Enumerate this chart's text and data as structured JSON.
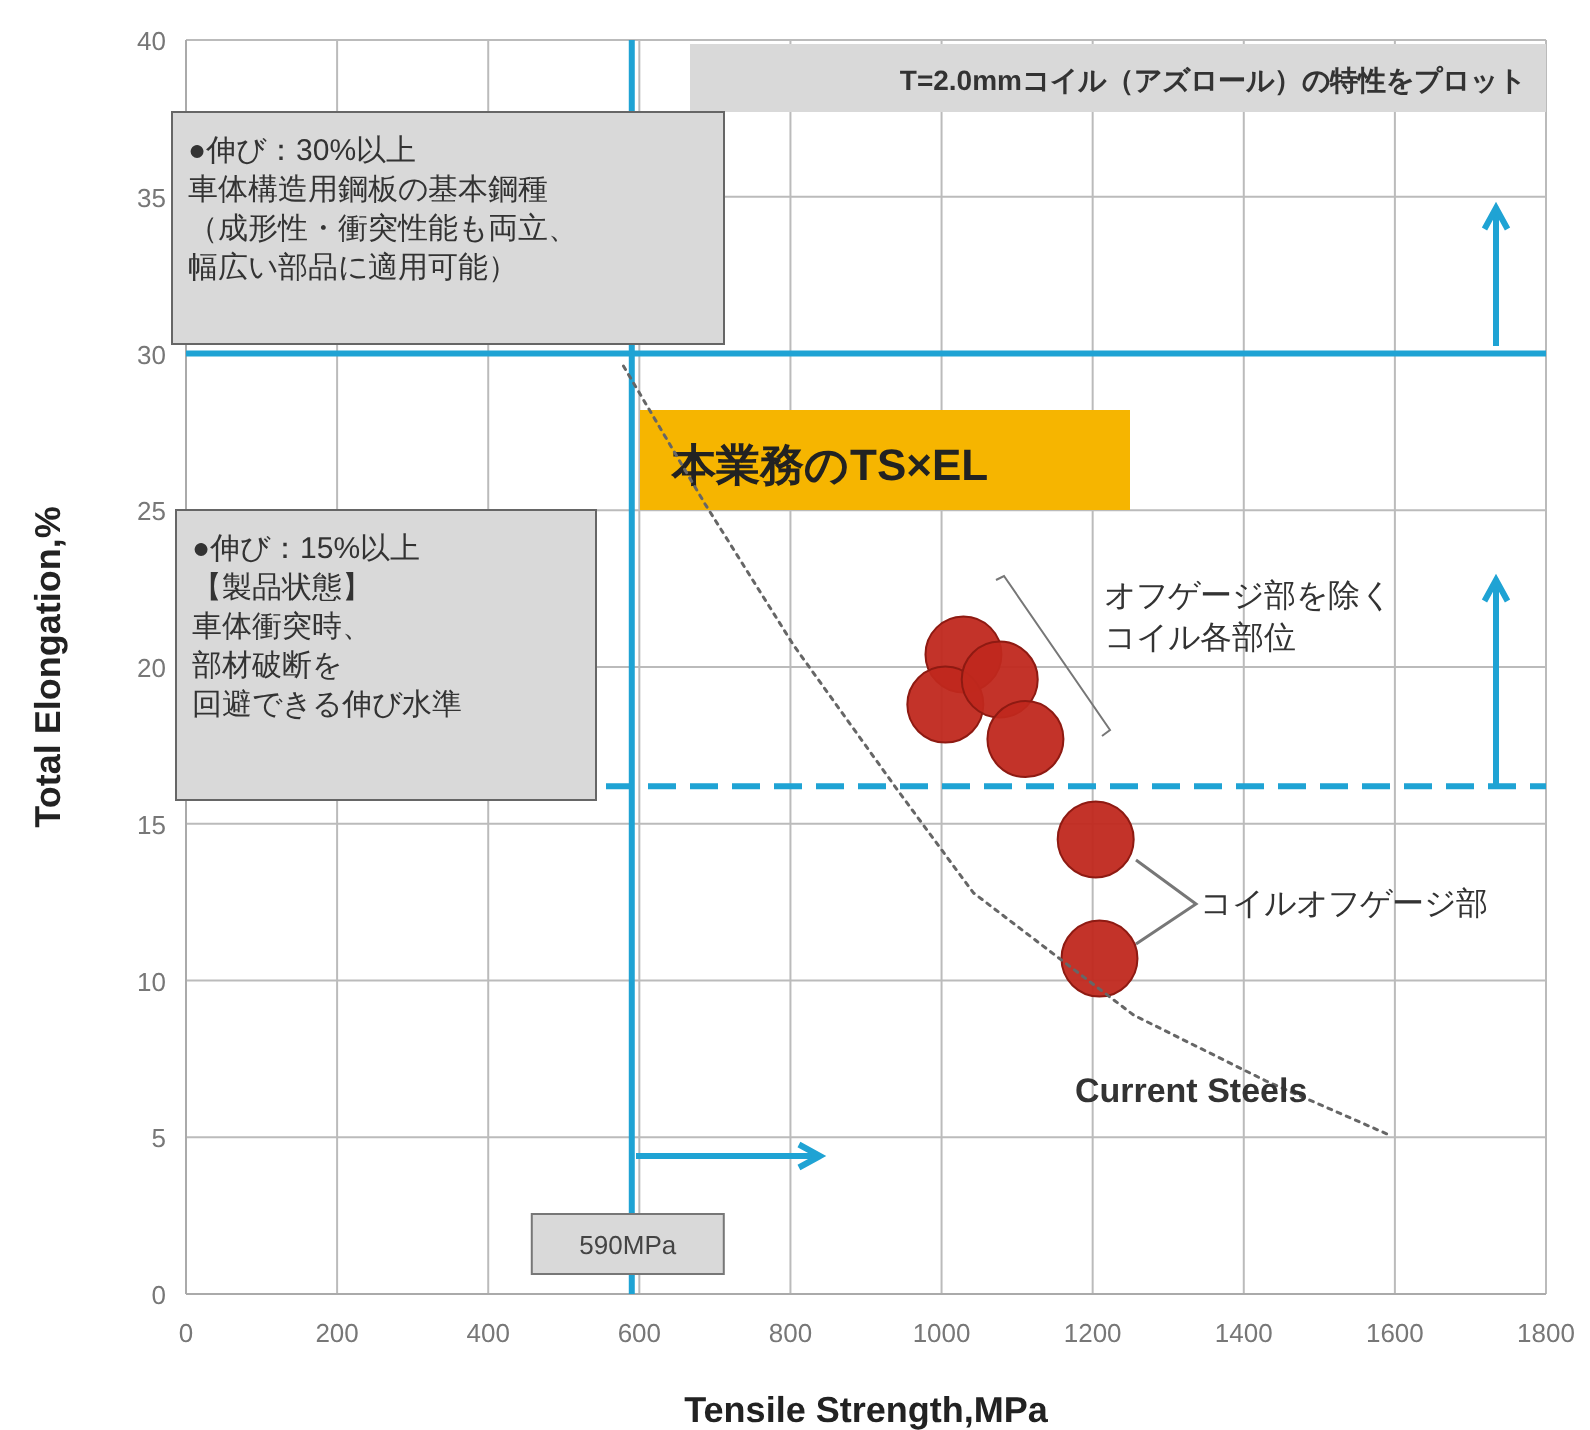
{
  "chart_data": {
    "type": "scatter",
    "xlabel": "Tensile Strength,MPa",
    "ylabel": "Total Elongation,%",
    "xlim": [
      0,
      1800
    ],
    "ylim": [
      0,
      40
    ],
    "xticks": [
      0,
      200,
      400,
      600,
      800,
      1000,
      1200,
      1400,
      1600,
      1800
    ],
    "yticks": [
      0,
      5,
      10,
      15,
      20,
      25,
      30,
      35,
      40
    ],
    "grid": true,
    "series": [
      {
        "type": "scatter",
        "color": "#c0281e",
        "marker": "circle",
        "x": [
          1029,
          1005,
          1077,
          1111,
          1204,
          1209
        ],
        "values": [
          20.4,
          18.8,
          19.6,
          17.7,
          14.5,
          10.7
        ]
      },
      {
        "type": "line",
        "name": "Current Steels",
        "color": "#666666",
        "line_style": "dotted",
        "marker": "none",
        "x": [
          579,
          687,
          804,
          944,
          1042,
          1254,
          1429,
          1590
        ],
        "values": [
          29.6,
          25.2,
          20.7,
          16.0,
          12.8,
          8.9,
          6.8,
          5.1
        ]
      }
    ],
    "ref_lines": [
      {
        "axis": "y",
        "value": 30,
        "color": "#1fa3d4",
        "line_style": "solid"
      },
      {
        "axis": "y",
        "value": 16.2,
        "color": "#1fa3d4",
        "line_style": "dashed"
      },
      {
        "axis": "x",
        "value": 590,
        "label": "590MPa",
        "color": "#1fa3d4",
        "line_style": "solid"
      }
    ],
    "annotations": [
      "T=2.0mmコイル（アズロール）の特性をプロット",
      "●伸び：30%以上車体構造用鋼板の基本鋼種（成形性・衝突性能も両立、幅広い部品に適用可能）",
      "本業務のTS×EL",
      "●伸び：15%以上【製品状態】車体衝突時、部材破断を回避できる伸び水準",
      "オフゲージ部を除くコイル各部位",
      "コイルオフゲージ部"
    ]
  }
}
